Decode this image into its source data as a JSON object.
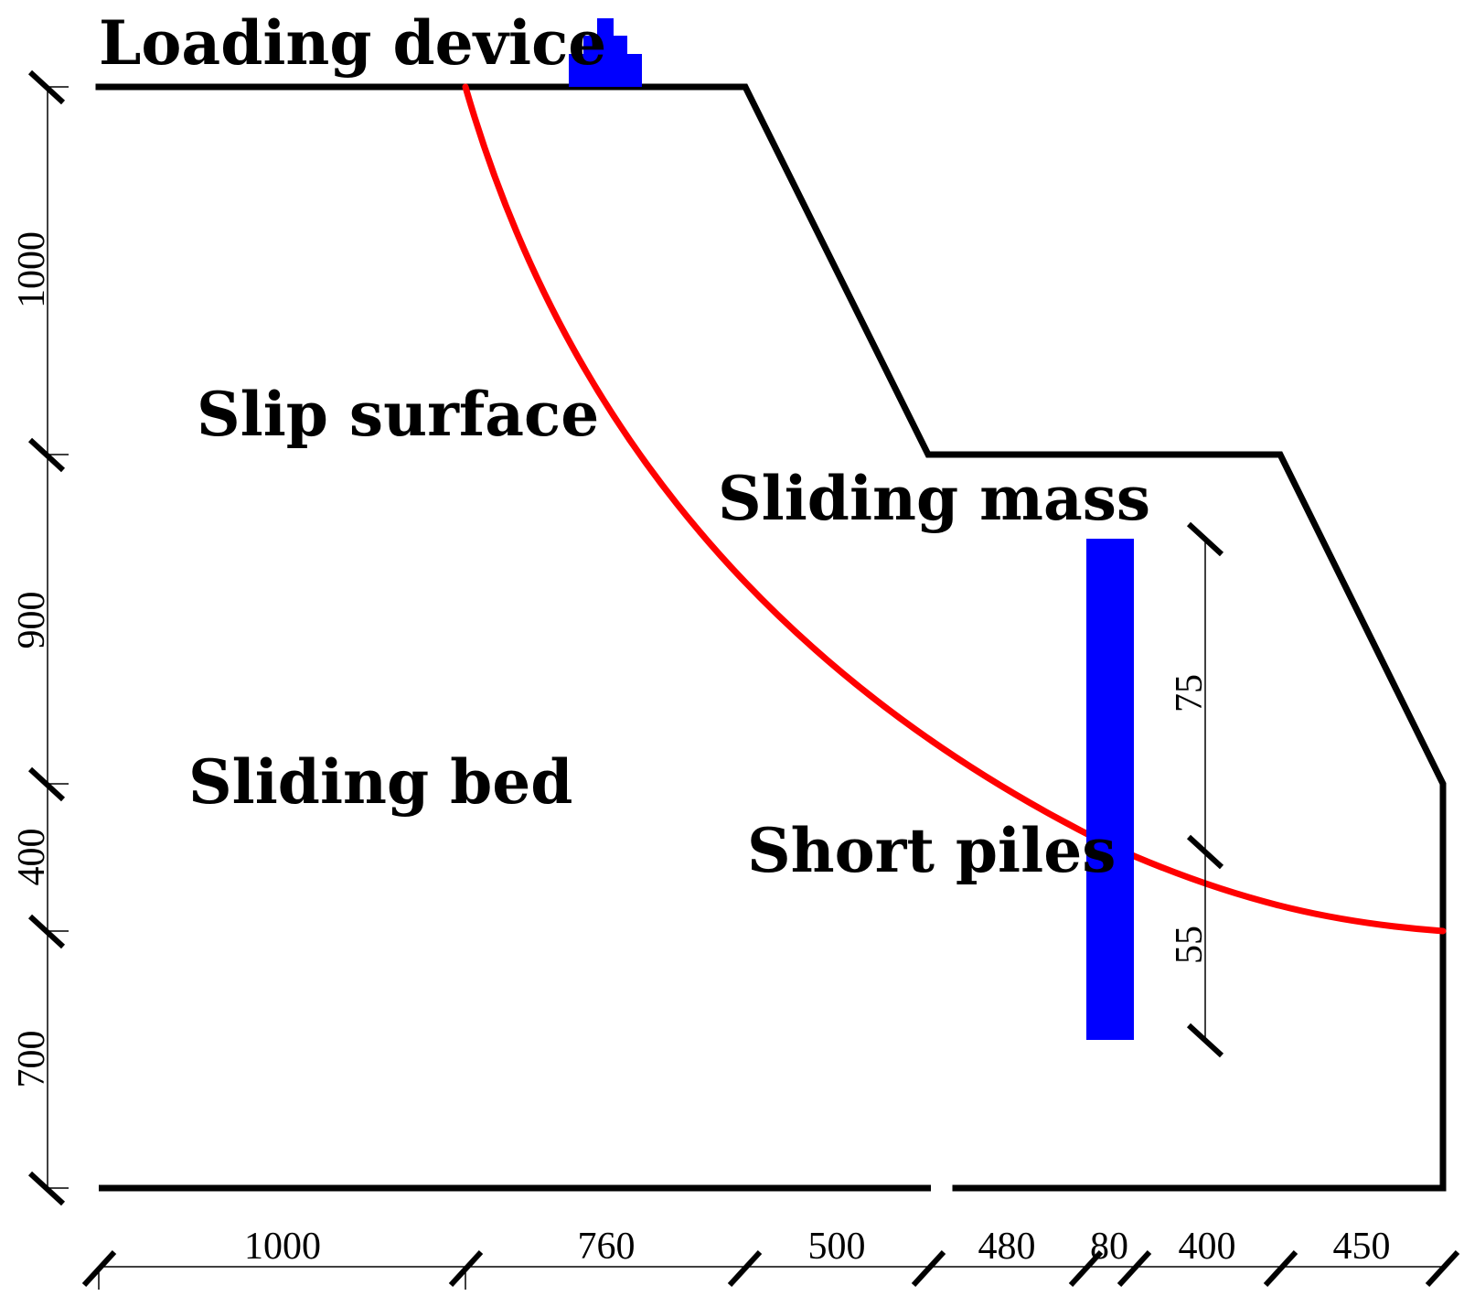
{
  "labels": {
    "loading_device": "Loading device",
    "slip_surface": "Slip surface",
    "sliding_mass": "Sliding mass",
    "sliding_bed": "Sliding bed",
    "short_piles": "Short piles"
  },
  "dimensions": {
    "bottom": [
      "1000",
      "760",
      "500",
      "480",
      "80",
      "400",
      "450"
    ],
    "left": [
      "1000",
      "900",
      "400",
      "700"
    ],
    "pile": [
      "75",
      "55"
    ]
  },
  "colors": {
    "outline": "#000000",
    "slip_surface": "#ff0000",
    "piles_and_loading": "#0000ff"
  }
}
